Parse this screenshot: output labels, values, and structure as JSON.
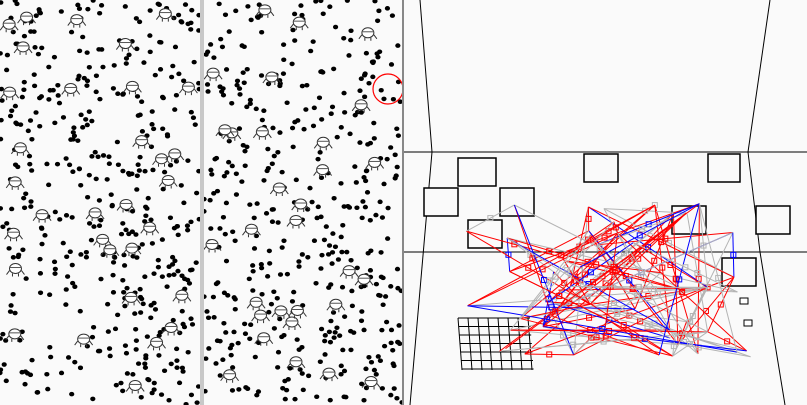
{
  "views": {
    "left_view": {
      "name": "2d-world-view-1"
    },
    "middle_view": {
      "name": "2d-world-view-2"
    },
    "right_view": {
      "name": "3d-network-view"
    }
  },
  "colors": {
    "background": "#fafafa",
    "divider": "#c8c8c8",
    "dots": "#000000",
    "selection_ring": "#ff0000",
    "link_red": "#ff0000",
    "link_blue": "#0000ff",
    "link_gray": "#b4b4b4"
  },
  "icons": {
    "agent": "creature-icon",
    "food": "dot-icon",
    "node": "square-node-icon"
  }
}
